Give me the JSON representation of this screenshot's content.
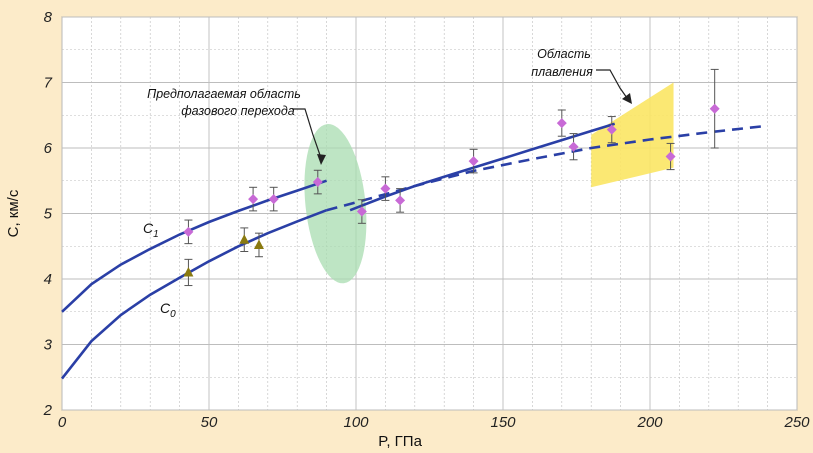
{
  "chart_data": {
    "type": "scatter",
    "title": "",
    "xlabel": "P, ГПа",
    "ylabel": "C, км/с",
    "xlim": [
      0,
      250
    ],
    "ylim": [
      2,
      8
    ],
    "x_ticks": [
      "0",
      "50",
      "100",
      "150",
      "200",
      "250"
    ],
    "y_ticks": [
      "2",
      "3",
      "4",
      "5",
      "6",
      "7",
      "8"
    ],
    "grid": true,
    "colors": {
      "background": "#fcebc9",
      "plot_area": "#ffffff",
      "curve": "#2a3fa6",
      "c1_markers": "#c86ad6",
      "c0_markers": "#8a7a10",
      "phase_region": "#a8dcb0",
      "melt_region": "#fbe564",
      "grid": "#bdbdbd"
    },
    "annotations": {
      "phase_transition": [
        "Предполагаемая область",
        "фазового перехода"
      ],
      "melting": [
        "Область",
        "плавления"
      ]
    },
    "curve_labels": {
      "c1": {
        "main": "C",
        "sub": "1"
      },
      "c0": {
        "main": "C",
        "sub": "0"
      }
    },
    "series": [
      {
        "name": "C1",
        "kind": "points",
        "marker": "diamond",
        "points": [
          {
            "x": 43,
            "y": 4.72,
            "err": 0.18
          },
          {
            "x": 65,
            "y": 5.22,
            "err": 0.18
          },
          {
            "x": 72,
            "y": 5.22,
            "err": 0.18
          },
          {
            "x": 87,
            "y": 5.48,
            "err": 0.18
          },
          {
            "x": 102,
            "y": 5.03,
            "err": 0.18
          },
          {
            "x": 110,
            "y": 5.38,
            "err": 0.18
          },
          {
            "x": 115,
            "y": 5.2,
            "err": 0.18
          },
          {
            "x": 140,
            "y": 5.8,
            "err": 0.18
          },
          {
            "x": 170,
            "y": 6.38,
            "err": 0.2
          },
          {
            "x": 174,
            "y": 6.02,
            "err": 0.2
          },
          {
            "x": 187,
            "y": 6.28,
            "err": 0.2
          },
          {
            "x": 207,
            "y": 5.87,
            "err": 0.2
          },
          {
            "x": 222,
            "y": 6.6,
            "err": 0.6
          }
        ]
      },
      {
        "name": "C0",
        "kind": "points",
        "marker": "triangle",
        "points": [
          {
            "x": 43,
            "y": 4.1,
            "err": 0.2
          },
          {
            "x": 62,
            "y": 4.6,
            "err": 0.18
          },
          {
            "x": 67,
            "y": 4.52,
            "err": 0.18
          }
        ]
      },
      {
        "name": "C1 fit (low)",
        "kind": "line",
        "style": "solid",
        "x": [
          0,
          10,
          20,
          30,
          40,
          50,
          60,
          70,
          80,
          90
        ],
        "y": [
          3.5,
          3.92,
          4.22,
          4.46,
          4.68,
          4.87,
          5.04,
          5.2,
          5.35,
          5.5
        ]
      },
      {
        "name": "C1 fit (high)",
        "kind": "line",
        "style": "solid",
        "x": [
          98,
          110,
          120,
          130,
          140,
          150,
          160,
          170,
          180,
          188
        ],
        "y": [
          5.05,
          5.26,
          5.42,
          5.56,
          5.7,
          5.84,
          5.98,
          6.12,
          6.26,
          6.37
        ]
      },
      {
        "name": "C0 fit (low)",
        "kind": "line",
        "style": "solid",
        "x": [
          0,
          10,
          20,
          30,
          40,
          50,
          60,
          70,
          80,
          90
        ],
        "y": [
          2.48,
          3.05,
          3.45,
          3.76,
          4.02,
          4.27,
          4.5,
          4.7,
          4.88,
          5.05
        ]
      },
      {
        "name": "C0 fit (dashed)",
        "kind": "line",
        "style": "dashed",
        "x": [
          90,
          100,
          120,
          140,
          160,
          180,
          200,
          220,
          238
        ],
        "y": [
          5.05,
          5.17,
          5.42,
          5.65,
          5.83,
          6.0,
          6.13,
          6.24,
          6.33
        ]
      }
    ]
  }
}
